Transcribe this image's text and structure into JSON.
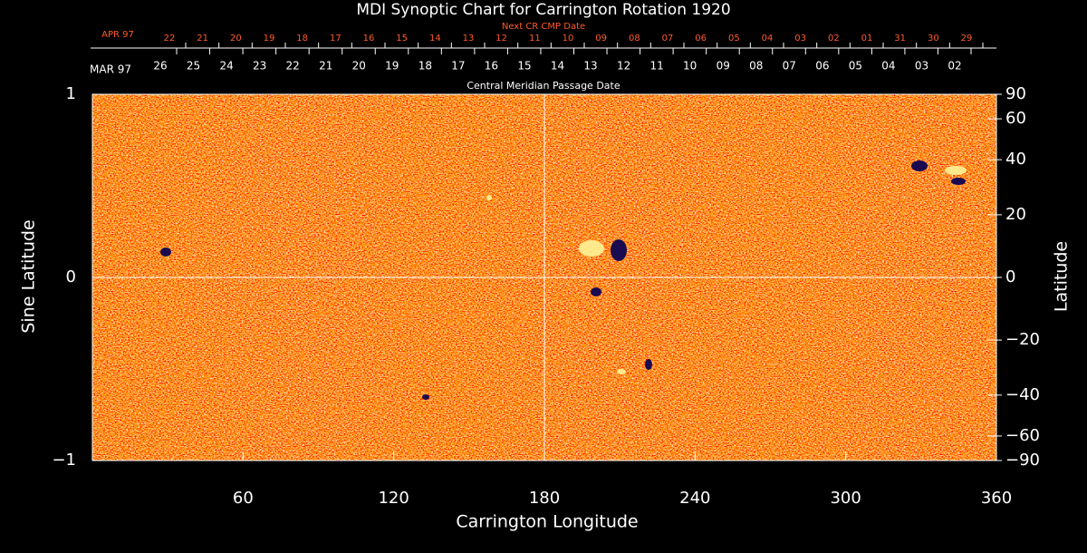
{
  "chart_data": {
    "type": "synoptic-map",
    "title": "MDI Synoptic Chart for Carrington Rotation 1920",
    "top_axis_title": "Next CR CMP Date",
    "top_axis_month": "APR 97",
    "top_axis_dates": [
      "22",
      "21",
      "20",
      "19",
      "18",
      "17",
      "16",
      "15",
      "14",
      "13",
      "12",
      "11",
      "10",
      "09",
      "08",
      "07",
      "06",
      "05",
      "04",
      "03",
      "02",
      "01",
      "31",
      "30",
      "29"
    ],
    "date_axis_month": "MAR 97",
    "date_axis_dates": [
      "26",
      "25",
      "24",
      "23",
      "22",
      "21",
      "20",
      "19",
      "18",
      "17",
      "16",
      "15",
      "14",
      "13",
      "12",
      "11",
      "10",
      "09",
      "08",
      "07",
      "06",
      "05",
      "04",
      "03",
      "02"
    ],
    "date_axis_title": "Central Meridian Passage Date",
    "xlabel": "Carrington Longitude",
    "ylabel": "Sine Latitude",
    "y2label": "Latitude",
    "xlim": [
      0,
      360
    ],
    "xticks": [
      60,
      120,
      180,
      240,
      300,
      360
    ],
    "ylim": [
      -1,
      1
    ],
    "yticks": [
      1,
      0,
      {
        "value": -1,
        "label": "−1"
      }
    ],
    "y2ticks": [
      90,
      60,
      40,
      20,
      0,
      {
        "value": -20,
        "label": "−20"
      },
      {
        "value": -40,
        "label": "−40"
      },
      {
        "value": -60,
        "label": "−60"
      },
      {
        "value": -90,
        "label": "−90"
      }
    ],
    "grid_x": [
      180
    ],
    "grid_y": [
      0
    ]
  }
}
